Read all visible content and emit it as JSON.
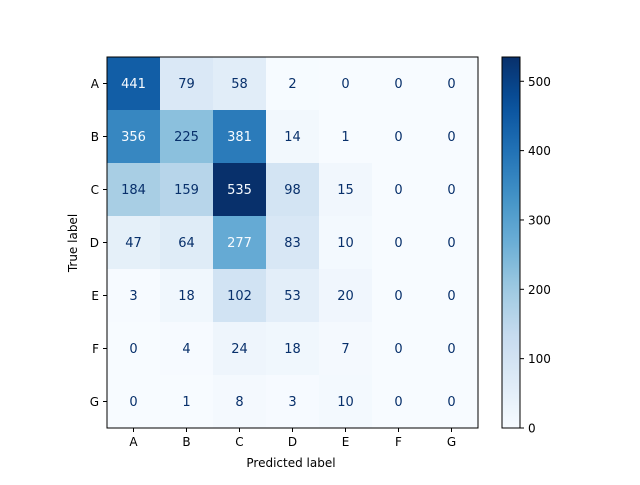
{
  "chart_data": {
    "type": "heatmap",
    "title": "",
    "xlabel": "Predicted label",
    "ylabel": "True label",
    "x_categories": [
      "A",
      "B",
      "C",
      "D",
      "E",
      "F",
      "G"
    ],
    "y_categories": [
      "A",
      "B",
      "C",
      "D",
      "E",
      "F",
      "G"
    ],
    "matrix": [
      [
        441,
        79,
        58,
        2,
        0,
        0,
        0
      ],
      [
        356,
        225,
        381,
        14,
        1,
        0,
        0
      ],
      [
        184,
        159,
        535,
        98,
        15,
        0,
        0
      ],
      [
        47,
        64,
        277,
        83,
        10,
        0,
        0
      ],
      [
        3,
        18,
        102,
        53,
        20,
        0,
        0
      ],
      [
        0,
        4,
        24,
        18,
        7,
        0,
        0
      ],
      [
        0,
        1,
        8,
        3,
        10,
        0,
        0
      ]
    ],
    "colormap": "Blues",
    "colorbar": {
      "vmin": 0,
      "vmax": 535,
      "ticks": [
        0,
        100,
        200,
        300,
        400,
        500
      ]
    },
    "grid": false
  }
}
